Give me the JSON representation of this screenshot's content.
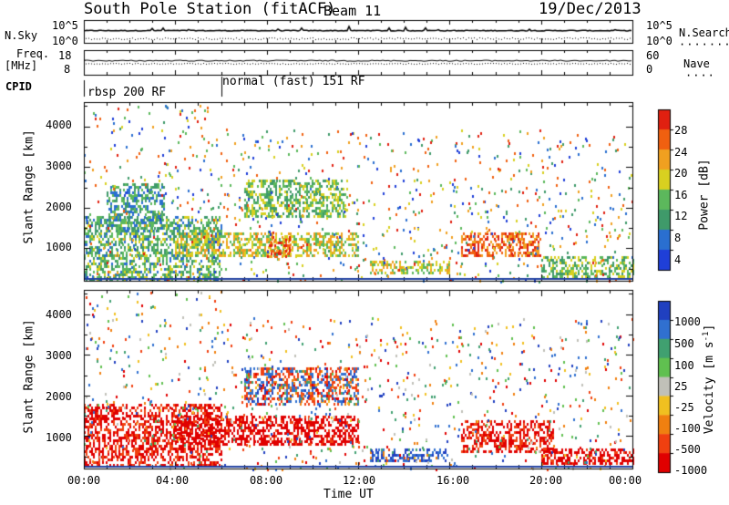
{
  "header": {
    "station": "South Pole Station (fitACF)",
    "beam": "Beam 11",
    "date": "19/Dec/2013"
  },
  "top_panels": {
    "nsky_label": "N.Sky",
    "nsky_ticks": [
      "10^5",
      "10^0"
    ],
    "nsearch_label": "N.Search",
    "nsearch_ticks": [
      "10^5",
      "10^0"
    ],
    "freq_label": "Freq.",
    "freq_unit": "[MHz]",
    "freq_ticks": [
      "18",
      "8"
    ],
    "nave_label": "Nave",
    "nave_ticks": [
      "60",
      "0"
    ],
    "cpid_label": "CPID",
    "cpid_segments": [
      {
        "label": "rbsp 200 RF",
        "start_hour": 0.0,
        "end_hour": 6.0
      },
      {
        "label": "normal (fast) 151 RF",
        "start_hour": 6.0,
        "end_hour": 24.0
      }
    ]
  },
  "chart_data": [
    {
      "type": "heatmap",
      "panel": "power",
      "ylabel": "Slant Range [km]",
      "yticks": [
        "1000",
        "2000",
        "3000",
        "4000"
      ],
      "ylim": [
        200,
        4600
      ],
      "xlim_hours": [
        0,
        24
      ],
      "colorbar_label": "Power [dB]",
      "colorbar_ticks": [
        "4",
        "8",
        "12",
        "16",
        "20",
        "24",
        "28"
      ],
      "colorbar_colors": [
        "#1f3fd8",
        "#2a6fd0",
        "#3f9a6a",
        "#5cb85c",
        "#d8d020",
        "#f0a020",
        "#f06010",
        "#e02010"
      ],
      "features": [
        {
          "hours": [
            0.0,
            6.0
          ],
          "range_km": [
            200,
            1800
          ],
          "level_db": 12
        },
        {
          "hours": [
            1.0,
            3.5
          ],
          "range_km": [
            1400,
            2600
          ],
          "level_db": 10
        },
        {
          "hours": [
            4.0,
            12.0
          ],
          "range_km": [
            800,
            1400
          ],
          "level_db": 18
        },
        {
          "hours": [
            7.0,
            11.5
          ],
          "range_km": [
            1800,
            2700
          ],
          "level_db": 14
        },
        {
          "hours": [
            8.0,
            9.0
          ],
          "range_km": [
            800,
            1300
          ],
          "level_db": 26
        },
        {
          "hours": [
            12.5,
            16.0
          ],
          "range_km": [
            400,
            700
          ],
          "level_db": 18
        },
        {
          "hours": [
            16.5,
            20.0
          ],
          "range_km": [
            800,
            1400
          ],
          "level_db": 26
        },
        {
          "hours": [
            20.0,
            24.0
          ],
          "range_km": [
            300,
            800
          ],
          "level_db": 14
        }
      ]
    },
    {
      "type": "heatmap",
      "panel": "velocity",
      "ylabel": "Slant Range [km]",
      "yticks": [
        "1000",
        "2000",
        "3000",
        "4000"
      ],
      "ylim": [
        200,
        4600
      ],
      "xlim_hours": [
        0,
        24
      ],
      "xticks": [
        "00:00",
        "04:00",
        "08:00",
        "12:00",
        "16:00",
        "20:00",
        "00:00"
      ],
      "xlabel": "Time UT",
      "colorbar_label": "Velocity",
      "colorbar_unit": "[m s",
      "colorbar_unit_exp": "-1",
      "colorbar_unit_close": "]",
      "colorbar_ticks": [
        "1000",
        "500",
        "100",
        "25",
        "-25",
        "-100",
        "-500",
        "-1000"
      ],
      "colorbar_colors": [
        "#2040c0",
        "#3070d0",
        "#40a070",
        "#60c050",
        "#c0c0b8",
        "#f0c020",
        "#f08010",
        "#f04010",
        "#e00000"
      ],
      "features": [
        {
          "hours": [
            0.0,
            6.0
          ],
          "range_km": [
            300,
            1800
          ],
          "velocity_ms": -300
        },
        {
          "hours": [
            4.0,
            12.0
          ],
          "range_km": [
            800,
            1500
          ],
          "velocity_ms": -400
        },
        {
          "hours": [
            7.0,
            12.0
          ],
          "range_km": [
            1800,
            2700
          ],
          "velocity_ms": 0
        },
        {
          "hours": [
            12.5,
            16.0
          ],
          "range_km": [
            400,
            700
          ],
          "velocity_ms": 200
        },
        {
          "hours": [
            16.5,
            20.5
          ],
          "range_km": [
            600,
            1400
          ],
          "velocity_ms": -300
        },
        {
          "hours": [
            20.0,
            24.0
          ],
          "range_km": [
            300,
            700
          ],
          "velocity_ms": -400
        }
      ]
    }
  ]
}
